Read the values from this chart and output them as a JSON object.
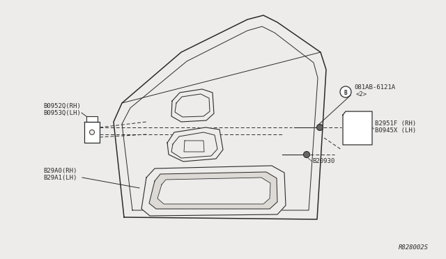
{
  "bg_color": "#edecea",
  "line_color": "#2a2a2a",
  "label_color": "#2a2a2a",
  "diagram_ref": "R828002S",
  "labels": {
    "bracket_top": [
      "B0952Q(RH)",
      "B0953Q(LH)"
    ],
    "bracket_bottom": [
      "B29A0(RH)",
      "B29A1(LH)"
    ],
    "bolt": [
      "081AB-6121A",
      "<2>"
    ],
    "screw_label": "B20930",
    "trim_panel": [
      "B2951F (RH)",
      "B0945X (LH)"
    ]
  },
  "font_size": 6.5
}
